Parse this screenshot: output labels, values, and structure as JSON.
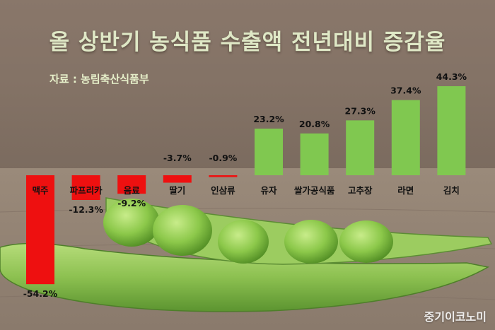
{
  "title": "올 상반기 농식품 수출액 전년대비 증감율",
  "source": "자료 : 농림축산식품부",
  "watermark": "중기이코노미",
  "colors": {
    "positive": "#80c850",
    "negative": "#ee1010",
    "title": "#dfe8c6"
  },
  "chart_data": {
    "type": "bar",
    "categories": [
      "맥주",
      "파프리카",
      "음료",
      "딸기",
      "인삼류",
      "유자",
      "쌀가공식품",
      "고추장",
      "라면",
      "김치"
    ],
    "values": [
      -54.2,
      -12.3,
      -9.2,
      -3.7,
      -0.9,
      23.2,
      20.8,
      27.3,
      37.4,
      44.3
    ],
    "value_labels": [
      "-54.2%",
      "-12.3%",
      "-9.2%",
      "-3.7%",
      "-0.9%",
      "23.2%",
      "20.8%",
      "27.3%",
      "37.4%",
      "44.3%"
    ],
    "unit": "%",
    "ylim": [
      -54.2,
      44.3
    ],
    "grid": false,
    "legend": "none"
  }
}
